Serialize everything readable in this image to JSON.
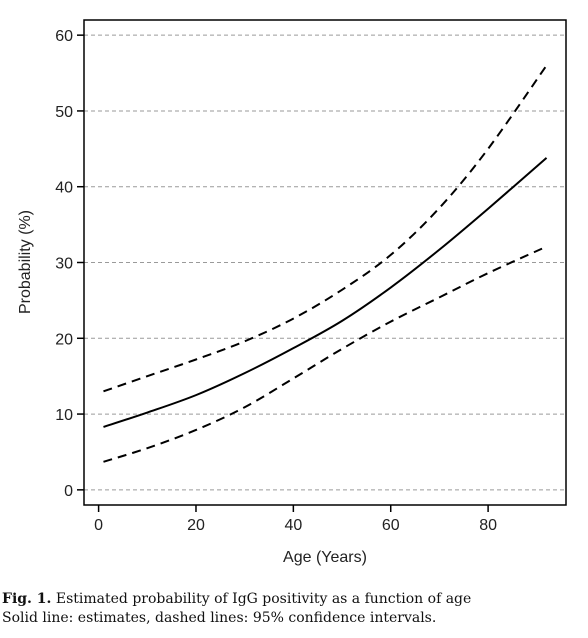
{
  "chart_data": {
    "type": "line",
    "xlabel": "Age (Years)",
    "ylabel": "Probability (%)",
    "xlim": [
      -3,
      96
    ],
    "ylim": [
      -2,
      62
    ],
    "xticks": [
      0,
      20,
      40,
      60,
      80
    ],
    "yticks": [
      0,
      10,
      20,
      30,
      40,
      50,
      60
    ],
    "grid": "horizontal dashed",
    "series": [
      {
        "style": "solid",
        "x": [
          1,
          10,
          20,
          30,
          40,
          50,
          60,
          70,
          80,
          92
        ],
        "y": [
          8.3,
          10.2,
          12.5,
          15.4,
          18.7,
          22.3,
          26.7,
          31.7,
          37.1,
          43.8
        ]
      },
      {
        "style": "dashed",
        "x": [
          1,
          10,
          20,
          30,
          40,
          50,
          60,
          70,
          80,
          92
        ],
        "y": [
          13.0,
          15.0,
          17.2,
          19.6,
          22.6,
          26.4,
          31.0,
          37.2,
          45.0,
          56.0
        ]
      },
      {
        "style": "dashed",
        "x": [
          1,
          10,
          20,
          30,
          40,
          50,
          60,
          70,
          80,
          92
        ],
        "y": [
          3.7,
          5.5,
          7.9,
          10.9,
          14.7,
          18.6,
          22.2,
          25.4,
          28.6,
          32.1
        ]
      }
    ]
  },
  "caption": {
    "label": "Fig. 1.",
    "line1": "Estimated probability of IgG positivity as a function of age",
    "line2": "Solid line: estimates, dashed lines: 95% confidence intervals."
  }
}
